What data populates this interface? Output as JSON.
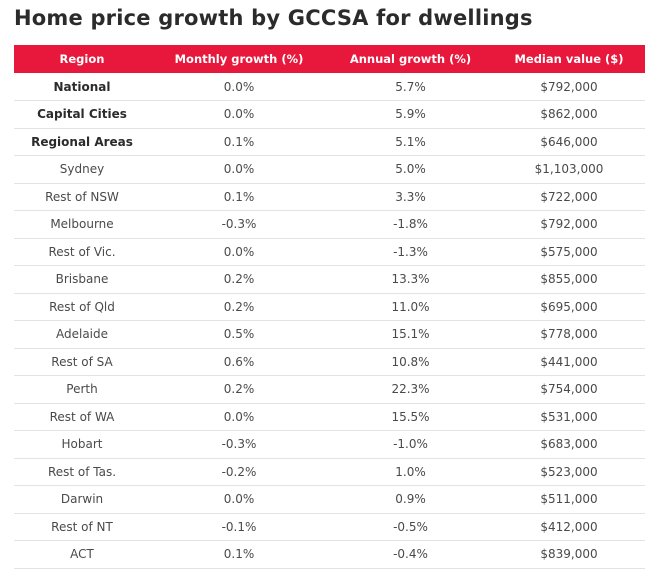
{
  "title": "Home price growth by GCCSA for dwellings",
  "table": {
    "headers": [
      "Region",
      "Monthly growth (%)",
      "Annual growth (%)",
      "Median value ($)"
    ],
    "rows": [
      {
        "region": "National",
        "monthly": "0.0%",
        "annual": "5.7%",
        "median": "$792,000",
        "bold": true
      },
      {
        "region": "Capital Cities",
        "monthly": "0.0%",
        "annual": "5.9%",
        "median": "$862,000",
        "bold": true
      },
      {
        "region": "Regional Areas",
        "monthly": "0.1%",
        "annual": "5.1%",
        "median": "$646,000",
        "bold": true
      },
      {
        "region": "Sydney",
        "monthly": "0.0%",
        "annual": "5.0%",
        "median": "$1,103,000",
        "bold": false
      },
      {
        "region": "Rest of NSW",
        "monthly": "0.1%",
        "annual": "3.3%",
        "median": "$722,000",
        "bold": false
      },
      {
        "region": "Melbourne",
        "monthly": "-0.3%",
        "annual": "-1.8%",
        "median": "$792,000",
        "bold": false
      },
      {
        "region": "Rest of Vic.",
        "monthly": "0.0%",
        "annual": "-1.3%",
        "median": "$575,000",
        "bold": false
      },
      {
        "region": "Brisbane",
        "monthly": "0.2%",
        "annual": "13.3%",
        "median": "$855,000",
        "bold": false
      },
      {
        "region": "Rest of Qld",
        "monthly": "0.2%",
        "annual": "11.0%",
        "median": "$695,000",
        "bold": false
      },
      {
        "region": "Adelaide",
        "monthly": "0.5%",
        "annual": "15.1%",
        "median": "$778,000",
        "bold": false
      },
      {
        "region": "Rest of SA",
        "monthly": "0.6%",
        "annual": "10.8%",
        "median": "$441,000",
        "bold": false
      },
      {
        "region": "Perth",
        "monthly": "0.2%",
        "annual": "22.3%",
        "median": "$754,000",
        "bold": false
      },
      {
        "region": "Rest of WA",
        "monthly": "0.0%",
        "annual": "15.5%",
        "median": "$531,000",
        "bold": false
      },
      {
        "region": "Hobart",
        "monthly": "-0.3%",
        "annual": "-1.0%",
        "median": "$683,000",
        "bold": false
      },
      {
        "region": "Rest of Tas.",
        "monthly": "-0.2%",
        "annual": "1.0%",
        "median": "$523,000",
        "bold": false
      },
      {
        "region": "Darwin",
        "monthly": "0.0%",
        "annual": "0.9%",
        "median": "$511,000",
        "bold": false
      },
      {
        "region": "Rest of NT",
        "monthly": "-0.1%",
        "annual": "-0.5%",
        "median": "$412,000",
        "bold": false
      },
      {
        "region": "ACT",
        "monthly": "0.1%",
        "annual": "-0.4%",
        "median": "$839,000",
        "bold": false
      }
    ]
  },
  "colors": {
    "header_bg": "#e8173c",
    "header_text": "#ffffff",
    "row_divider": "#e3e3e3",
    "title_text": "#2b2b2b"
  },
  "chart_data": {
    "type": "table",
    "title": "Home price growth by GCCSA for dwellings",
    "columns": [
      "Region",
      "Monthly growth (%)",
      "Annual growth (%)",
      "Median value ($)"
    ],
    "rows": [
      [
        "National",
        0.0,
        5.7,
        792000
      ],
      [
        "Capital Cities",
        0.0,
        5.9,
        862000
      ],
      [
        "Regional Areas",
        0.1,
        5.1,
        646000
      ],
      [
        "Sydney",
        0.0,
        5.0,
        1103000
      ],
      [
        "Rest of NSW",
        0.1,
        3.3,
        722000
      ],
      [
        "Melbourne",
        -0.3,
        -1.8,
        792000
      ],
      [
        "Rest of Vic.",
        0.0,
        -1.3,
        575000
      ],
      [
        "Brisbane",
        0.2,
        13.3,
        855000
      ],
      [
        "Rest of Qld",
        0.2,
        11.0,
        695000
      ],
      [
        "Adelaide",
        0.5,
        15.1,
        778000
      ],
      [
        "Rest of SA",
        0.6,
        10.8,
        441000
      ],
      [
        "Perth",
        0.2,
        22.3,
        754000
      ],
      [
        "Rest of WA",
        0.0,
        15.5,
        531000
      ],
      [
        "Hobart",
        -0.3,
        -1.0,
        683000
      ],
      [
        "Rest of Tas.",
        -0.2,
        1.0,
        523000
      ],
      [
        "Darwin",
        0.0,
        0.9,
        511000
      ],
      [
        "Rest of NT",
        -0.1,
        -0.5,
        412000
      ],
      [
        "ACT",
        0.1,
        -0.4,
        839000
      ]
    ]
  }
}
